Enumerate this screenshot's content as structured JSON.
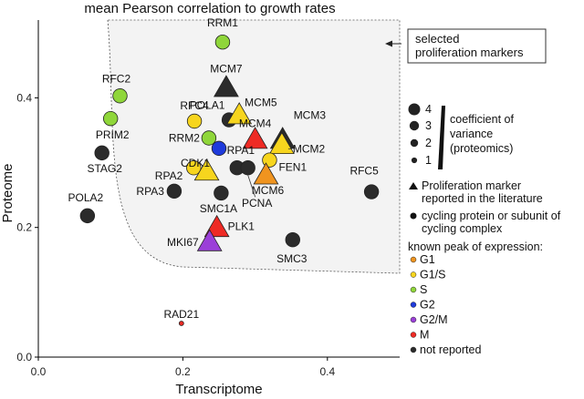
{
  "chart_data": {
    "type": "scatter",
    "title": "mean Pearson correlation to growth rates",
    "xlabel": "Transcriptome",
    "ylabel": "Proteome",
    "xlim": [
      0.0,
      0.5
    ],
    "ylim": [
      0.0,
      0.52
    ],
    "xticks": [
      "0.0",
      "0.2",
      "0.4"
    ],
    "yticks": [
      "0.0",
      "0.2",
      "0.4"
    ],
    "callout": [
      "selected",
      "proliferation markers"
    ],
    "points": [
      {
        "label": "RRM1",
        "x": 0.255,
        "y": 0.486,
        "shape": "circle",
        "phase": "S",
        "size": 3
      },
      {
        "label": "RFC2",
        "x": 0.113,
        "y": 0.403,
        "shape": "circle",
        "phase": "S",
        "size": 3
      },
      {
        "label": "PRIM2",
        "x": 0.1,
        "y": 0.368,
        "shape": "circle",
        "phase": "S",
        "size": 3
      },
      {
        "label": "STAG2",
        "x": 0.088,
        "y": 0.315,
        "shape": "circle",
        "phase": "not reported",
        "size": 3
      },
      {
        "label": "POLA2",
        "x": 0.068,
        "y": 0.218,
        "shape": "circle",
        "phase": "not reported",
        "size": 3
      },
      {
        "label": "MCM7",
        "x": 0.26,
        "y": 0.415,
        "shape": "triangle",
        "phase": "not reported",
        "size": 4
      },
      {
        "label": "POLA1",
        "x": 0.264,
        "y": 0.366,
        "shape": "circle",
        "phase": "not reported",
        "size": 3
      },
      {
        "label": "MCM5",
        "x": 0.278,
        "y": 0.373,
        "shape": "triangle",
        "phase": "G1/S",
        "size": 4
      },
      {
        "label": "RFC4",
        "x": 0.216,
        "y": 0.364,
        "shape": "circle",
        "phase": "G1/S",
        "size": 3
      },
      {
        "label": "RRM2",
        "x": 0.236,
        "y": 0.338,
        "shape": "circle",
        "phase": "S",
        "size": 3
      },
      {
        "label": "CDK1",
        "x": 0.25,
        "y": 0.322,
        "shape": "circle",
        "phase": "G2",
        "size": 3
      },
      {
        "label": "MCM4",
        "x": 0.3,
        "y": 0.335,
        "shape": "triangle",
        "phase": "M",
        "size": 4
      },
      {
        "label": "MCM3",
        "x": 0.338,
        "y": 0.335,
        "shape": "triangle",
        "phase": "not reported",
        "size": 4
      },
      {
        "label": "MCM2",
        "x": 0.337,
        "y": 0.327,
        "shape": "triangle",
        "phase": "G1/S",
        "size": 4
      },
      {
        "label": "FEN1",
        "x": 0.32,
        "y": 0.304,
        "shape": "circle",
        "phase": "G1/S",
        "size": 3
      },
      {
        "label": "RPA1",
        "x": 0.275,
        "y": 0.292,
        "shape": "circle",
        "phase": "not reported",
        "size": 3
      },
      {
        "label": "RPA2",
        "x": 0.215,
        "y": 0.292,
        "shape": "circle",
        "phase": "G1/S",
        "size": 3
      },
      {
        "label": "",
        "x": 0.233,
        "y": 0.286,
        "shape": "triangle",
        "phase": "G1/S",
        "size": 4
      },
      {
        "label": "PCNA",
        "x": 0.29,
        "y": 0.292,
        "shape": "circle",
        "phase": "not reported",
        "size": 3
      },
      {
        "label": "MCM6",
        "x": 0.315,
        "y": 0.28,
        "shape": "triangle",
        "phase": "G1",
        "size": 4
      },
      {
        "label": "RPA3",
        "x": 0.188,
        "y": 0.256,
        "shape": "circle",
        "phase": "not reported",
        "size": 3
      },
      {
        "label": "SMC1A",
        "x": 0.253,
        "y": 0.253,
        "shape": "circle",
        "phase": "not reported",
        "size": 3
      },
      {
        "label": "RFC5",
        "x": 0.461,
        "y": 0.255,
        "shape": "circle",
        "phase": "not reported",
        "size": 3
      },
      {
        "label": "PLK1",
        "x": 0.247,
        "y": 0.199,
        "shape": "triangle",
        "phase": "M",
        "size": 4
      },
      {
        "label": "MKI67",
        "x": 0.237,
        "y": 0.177,
        "shape": "triangle",
        "phase": "G2/M",
        "size": 4
      },
      {
        "label": "SMC3",
        "x": 0.352,
        "y": 0.181,
        "shape": "circle",
        "phase": "not reported",
        "size": 3
      },
      {
        "label": "RAD21",
        "x": 0.198,
        "y": 0.052,
        "shape": "circle",
        "phase": "M",
        "size": 1
      }
    ],
    "legend": {
      "size_title": [
        "coefficient of",
        "variance",
        "(proteomics)"
      ],
      "sizes": [
        "4",
        "3",
        "2",
        "1"
      ],
      "shape_triangle": [
        "Proliferation marker",
        "reported in the literature"
      ],
      "shape_circle": [
        "cycling protein or subunit of",
        "cycling complex"
      ],
      "phase_title": "known peak of expression:",
      "phases": [
        {
          "name": "G1",
          "color": "#f0941f"
        },
        {
          "name": "G1/S",
          "color": "#f7d51e"
        },
        {
          "name": "S",
          "color": "#8fd63a"
        },
        {
          "name": "G2",
          "color": "#1f3bdb"
        },
        {
          "name": "G2/M",
          "color": "#9b3fd8"
        },
        {
          "name": "M",
          "color": "#ee2a24"
        },
        {
          "name": "not reported",
          "color": "#2b2b2b"
        }
      ]
    }
  }
}
